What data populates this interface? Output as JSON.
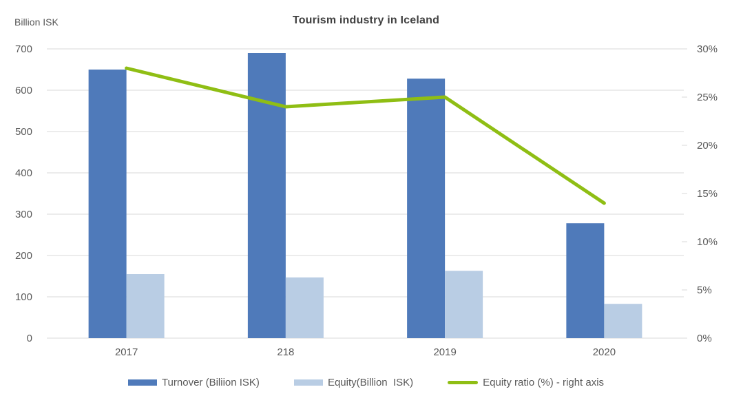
{
  "chart_data": {
    "type": "combo-bar-line",
    "title": "Tourism industry in Iceland",
    "categories": [
      "2017",
      "218",
      "2019",
      "2020"
    ],
    "series": [
      {
        "name": "Turnover (Biliion ISK)",
        "type": "bar",
        "axis": "left",
        "color": "#4f7aba",
        "values": [
          650,
          690,
          628,
          278
        ]
      },
      {
        "name": "Equity(Billion  ISK)",
        "type": "bar",
        "axis": "left",
        "color": "#b9cde4",
        "values": [
          155,
          147,
          163,
          83
        ]
      },
      {
        "name": "Equity ratio (%) - right axis",
        "type": "line",
        "axis": "right",
        "color": "#8fbe14",
        "values": [
          28,
          24,
          25,
          14
        ]
      }
    ],
    "left_axis": {
      "title": "Billion ISK",
      "min": 0,
      "max": 700,
      "step": 100,
      "tick_labels": [
        "0",
        "100",
        "200",
        "300",
        "400",
        "500",
        "600",
        "700"
      ]
    },
    "right_axis": {
      "min": 0,
      "max": 30,
      "step": 5,
      "tick_labels": [
        "0%",
        "5%",
        "10%",
        "15%",
        "20%",
        "25%",
        "30%"
      ]
    },
    "gridlines": true,
    "legend_position": "bottom"
  },
  "colors": {
    "grid": "#d9d9d9",
    "axis_text": "#595959",
    "title_text": "#404040",
    "background": "#ffffff"
  }
}
